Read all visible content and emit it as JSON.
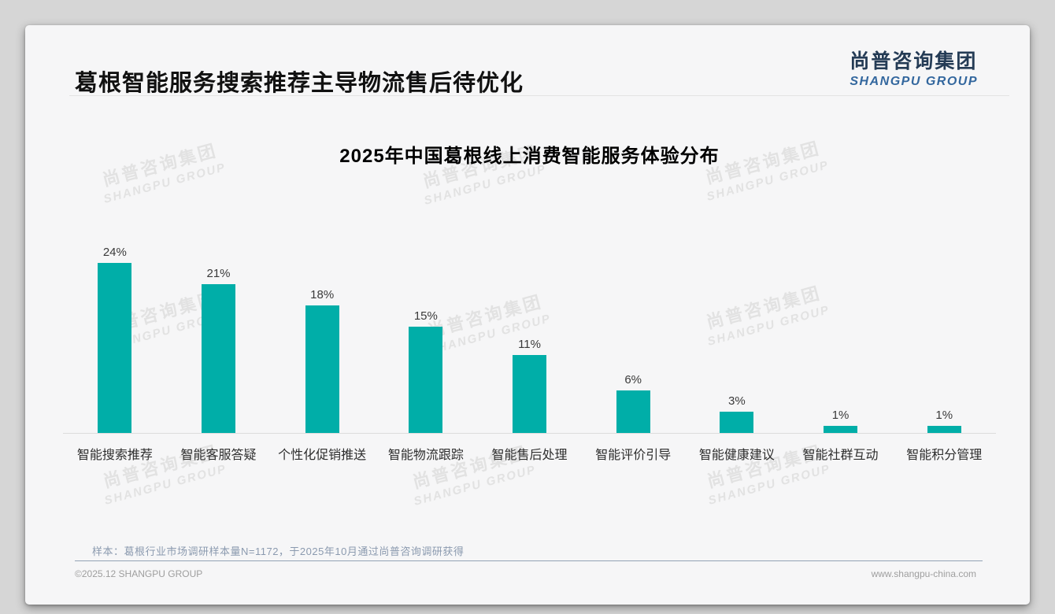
{
  "page": {
    "title": "葛根智能服务搜索推荐主导物流售后待优化",
    "logo": {
      "cn": "尚普咨询集团",
      "en": "SHANGPU GROUP"
    },
    "watermark": {
      "cn": "尚普咨询集团",
      "en": "SHANGPU GROUP"
    },
    "note": "样本：葛根行业市场调研样本量N=1172，于2025年10月通过尚普咨询调研获得",
    "footer": {
      "left": "©2025.12 SHANGPU GROUP",
      "right": "www.shangpu-china.com"
    }
  },
  "chart_data": {
    "type": "bar",
    "title": "2025年中国葛根线上消费智能服务体验分布",
    "categories": [
      "智能搜索推荐",
      "智能客服答疑",
      "个性化促销推送",
      "智能物流跟踪",
      "智能售后处理",
      "智能评价引导",
      "智能健康建议",
      "智能社群互动",
      "智能积分管理"
    ],
    "values": [
      24,
      21,
      18,
      15,
      11,
      6,
      3,
      1,
      1
    ],
    "data_labels": [
      "24%",
      "21%",
      "18%",
      "15%",
      "11%",
      "6%",
      "3%",
      "1%",
      "1%"
    ],
    "unit": "%",
    "ylim": [
      0,
      25
    ],
    "grid": false,
    "legend": "none",
    "value_axis_visible": false,
    "bar_color": "#00aea8"
  },
  "colors": {
    "bar": "#00aea8",
    "logo_cn": "#243b55",
    "logo_en": "#33679e",
    "note_text": "#8b9aaf",
    "separator": "#93a2b5",
    "footer_text": "#9e9e9e",
    "watermark": "#e2e2e2",
    "card_bg": "#f6f6f7",
    "page_bg": "#d6d6d6"
  }
}
